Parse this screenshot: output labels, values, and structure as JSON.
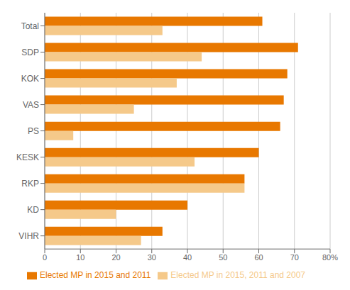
{
  "chart_data": {
    "type": "bar",
    "orientation": "horizontal",
    "categories": [
      "Total",
      "SDP",
      "KOK",
      "VAS",
      "PS",
      "KESK",
      "RKP",
      "KD",
      "VIHR"
    ],
    "series": [
      {
        "name": "Elected MP in 2015 and 2011",
        "color": "#E87800",
        "values": [
          61,
          71,
          68,
          67,
          66,
          60,
          56,
          40,
          33
        ]
      },
      {
        "name": "Elected MP in 2015, 2011 and 2007",
        "color": "#F5C98A",
        "values": [
          33,
          44,
          37,
          25,
          8,
          42,
          56,
          20,
          27
        ]
      }
    ],
    "xlim": [
      0,
      80
    ],
    "xticks": [
      0,
      10,
      20,
      30,
      40,
      50,
      60,
      70,
      {
        "value": 80,
        "label": "80%"
      }
    ],
    "grid": true,
    "legend": "bottom"
  }
}
